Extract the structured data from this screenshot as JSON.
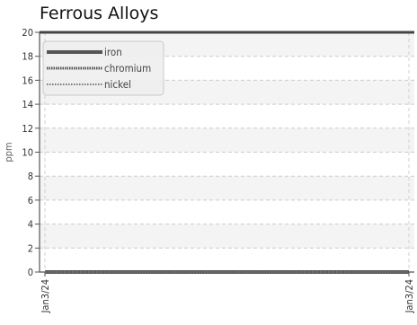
{
  "chart_data": {
    "type": "line",
    "title": "Ferrous Alloys",
    "xlabel": "",
    "ylabel": "ppm",
    "ylim": [
      0,
      20
    ],
    "y_ticks": [
      "0",
      "2",
      "4",
      "6",
      "8",
      "10",
      "12",
      "14",
      "16",
      "18",
      "20"
    ],
    "x": [
      "Jan3/24",
      "Jan3/24"
    ],
    "grid": true,
    "legend_position": "top-left",
    "series": [
      {
        "name": "iron",
        "values": [
          0,
          0
        ],
        "style": "solid",
        "color": "#555555"
      },
      {
        "name": "chromium",
        "values": [
          0,
          0
        ],
        "style": "dense-dotted",
        "color": "#555555"
      },
      {
        "name": "nickel",
        "values": [
          0,
          0
        ],
        "style": "dotted",
        "color": "#777777"
      }
    ]
  }
}
